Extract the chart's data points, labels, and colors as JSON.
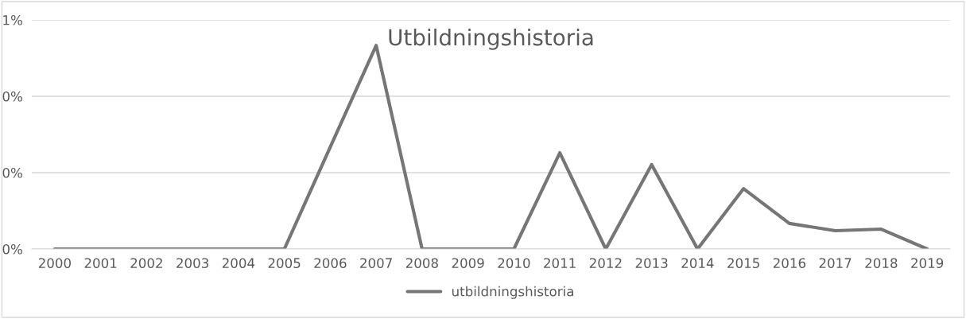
{
  "chart_data": {
    "type": "line",
    "title": "Utbildningshistoria",
    "categories": [
      "2000",
      "2001",
      "2002",
      "2003",
      "2004",
      "2005",
      "2006",
      "2007",
      "2008",
      "2009",
      "2010",
      "2011",
      "2012",
      "2013",
      "2014",
      "2015",
      "2016",
      "2017",
      "2018",
      "2019"
    ],
    "series": [
      {
        "name": "utbildningshistoria",
        "color": "#767676",
        "values": [
          0,
          0,
          0,
          0,
          0,
          0,
          0.267,
          0.533,
          0,
          0,
          0,
          0.252,
          0,
          0.221,
          0,
          0.158,
          0.067,
          0.048,
          0.052,
          0
        ]
      }
    ],
    "ylim": [
      0,
      0.6
    ],
    "yticks": [
      {
        "value": 0,
        "label": "0%"
      },
      {
        "value": 0.2,
        "label": "0%"
      },
      {
        "value": 0.4,
        "label": "0%"
      },
      {
        "value": 0.6,
        "label": "1%"
      }
    ],
    "grid": "y",
    "legend": "bottom",
    "marker": "none",
    "line_style": "solid"
  }
}
